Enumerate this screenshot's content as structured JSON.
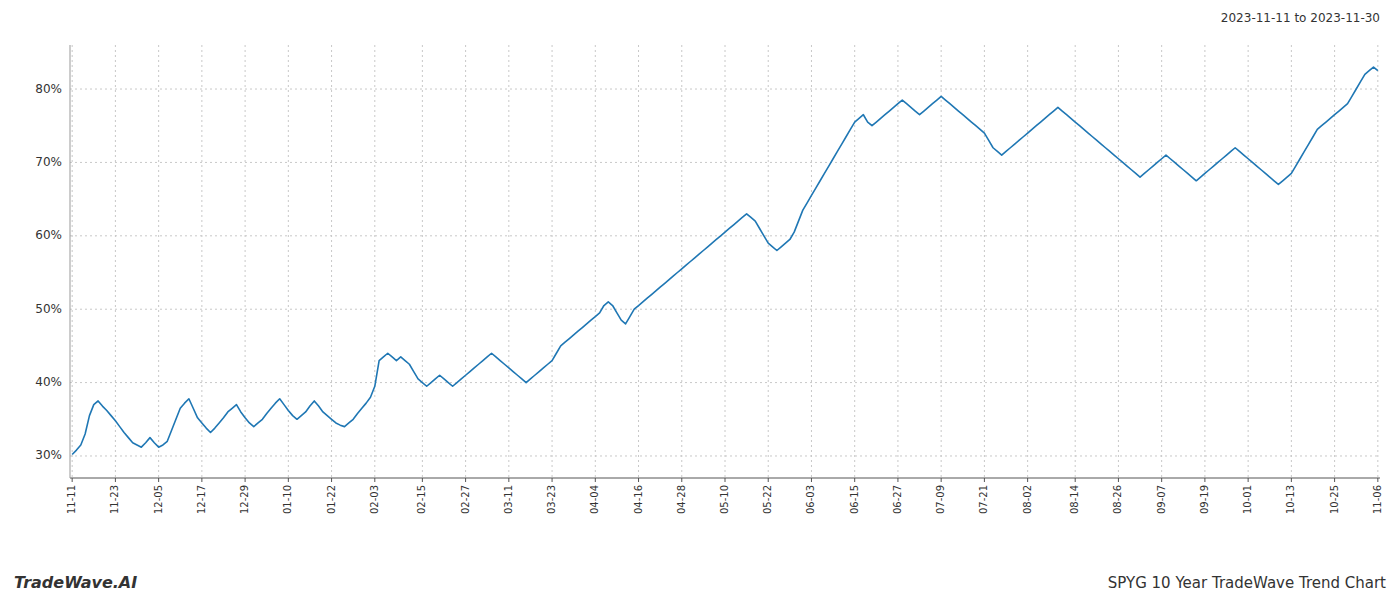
{
  "chart_data": {
    "type": "line",
    "title": "SPYG 10 Year TradeWave Trend Chart",
    "subtitle": "2023-11-11 to 2023-11-30",
    "annotations": [
      "TradeWave.AI"
    ],
    "color": "#1f77b4",
    "grid": true,
    "ylim": [
      27,
      86
    ],
    "yticks": [
      {
        "value": 30,
        "label": "30%"
      },
      {
        "value": 40,
        "label": "40%"
      },
      {
        "value": 50,
        "label": "50%"
      },
      {
        "value": 60,
        "label": "60%"
      },
      {
        "value": 70,
        "label": "70%"
      },
      {
        "value": 80,
        "label": "80%"
      }
    ],
    "categories": [
      "11-11",
      null,
      null,
      null,
      null,
      null,
      null,
      null,
      null,
      null,
      "11-23",
      null,
      null,
      null,
      null,
      null,
      null,
      null,
      null,
      null,
      "12-05",
      null,
      null,
      null,
      null,
      null,
      null,
      null,
      null,
      null,
      "12-17",
      null,
      null,
      null,
      null,
      null,
      null,
      null,
      null,
      null,
      "12-29",
      null,
      null,
      null,
      null,
      null,
      null,
      null,
      null,
      null,
      "01-10",
      null,
      null,
      null,
      null,
      null,
      null,
      null,
      null,
      null,
      "01-22",
      null,
      null,
      null,
      null,
      null,
      null,
      null,
      null,
      null,
      "02-03",
      null,
      null,
      null,
      null,
      null,
      null,
      null,
      null,
      null,
      null,
      "02-15",
      null,
      null,
      null,
      null,
      null,
      null,
      null,
      null,
      null,
      "02-27",
      null,
      null,
      null,
      null,
      null,
      null,
      null,
      null,
      null,
      "03-11",
      null,
      null,
      null,
      null,
      null,
      null,
      null,
      null,
      null,
      "03-23",
      null,
      null,
      null,
      null,
      null,
      null,
      null,
      null,
      null,
      "04-04",
      null,
      null,
      null,
      null,
      null,
      null,
      null,
      null,
      null,
      "04-16",
      null,
      null,
      null,
      null,
      null,
      null,
      null,
      null,
      null,
      "04-28",
      null,
      null,
      null,
      null,
      null,
      null,
      null,
      null,
      null,
      "05-10",
      null,
      null,
      null,
      null,
      null,
      null,
      null,
      null,
      null,
      "05-22",
      null,
      null,
      null,
      null,
      null,
      null,
      null,
      null,
      null,
      "06-03",
      null,
      null,
      null,
      null,
      null,
      null,
      null,
      null,
      null,
      "06-15",
      null,
      null,
      null,
      null,
      null,
      null,
      null,
      null,
      null,
      "06-27",
      null,
      null,
      null,
      null,
      null,
      null,
      null,
      null,
      null,
      "07-09",
      null,
      null,
      null,
      null,
      null,
      null,
      null,
      null,
      null,
      "07-21",
      null,
      null,
      null,
      null,
      null,
      null,
      null,
      null,
      null,
      "08-02",
      null,
      null,
      null,
      null,
      null,
      null,
      null,
      null,
      null,
      null,
      "08-14",
      null,
      null,
      null,
      null,
      null,
      null,
      null,
      null,
      null,
      "08-26",
      null,
      null,
      null,
      null,
      null,
      null,
      null,
      null,
      null,
      "09-07",
      null,
      null,
      null,
      null,
      null,
      null,
      null,
      null,
      null,
      "09-19",
      null,
      null,
      null,
      null,
      null,
      null,
      null,
      null,
      null,
      "10-01",
      null,
      null,
      null,
      null,
      null,
      null,
      null,
      null,
      null,
      "10-13",
      null,
      null,
      null,
      null,
      null,
      null,
      null,
      null,
      null,
      "10-25",
      null,
      null,
      null,
      null,
      null,
      null,
      null,
      null,
      null,
      "11-06"
    ],
    "values": [
      30.2,
      30.8,
      31.5,
      33.0,
      35.5,
      37.0,
      37.5,
      36.8,
      36.2,
      35.5,
      34.8,
      34.0,
      33.2,
      32.5,
      31.8,
      31.5,
      31.2,
      31.8,
      32.5,
      31.8,
      31.2,
      31.5,
      32.0,
      33.5,
      35.0,
      36.5,
      37.2,
      37.8,
      36.5,
      35.2,
      34.5,
      33.8,
      33.2,
      33.8,
      34.5,
      35.2,
      36.0,
      36.5,
      37.0,
      36.0,
      35.2,
      34.5,
      34.0,
      34.5,
      35.0,
      35.8,
      36.5,
      37.2,
      37.8,
      37.0,
      36.2,
      35.5,
      35.0,
      35.5,
      36.0,
      36.8,
      37.5,
      36.8,
      36.0,
      35.5,
      35.0,
      34.5,
      34.2,
      34.0,
      34.5,
      35.0,
      35.8,
      36.5,
      37.2,
      38.0,
      39.5,
      43.0,
      43.5,
      44.0,
      43.5,
      43.0,
      43.5,
      43.0,
      42.5,
      41.5,
      40.5,
      40.0,
      39.5,
      40.0,
      40.5,
      41.0,
      40.5,
      40.0,
      39.5,
      40.0,
      40.5,
      41.0,
      41.5,
      42.0,
      42.5,
      43.0,
      43.5,
      44.0,
      43.5,
      43.0,
      42.5,
      42.0,
      41.5,
      41.0,
      40.5,
      40.0,
      40.5,
      41.0,
      41.5,
      42.0,
      42.5,
      43.0,
      44.0,
      45.0,
      45.5,
      46.0,
      46.5,
      47.0,
      47.5,
      48.0,
      48.5,
      49.0,
      49.5,
      50.5,
      51.0,
      50.5,
      49.5,
      48.5,
      48.0,
      49.0,
      50.0,
      50.5,
      51.0,
      51.5,
      52.0,
      52.5,
      53.0,
      53.5,
      54.0,
      54.5,
      55.0,
      55.5,
      56.0,
      56.5,
      57.0,
      57.5,
      58.0,
      58.5,
      59.0,
      59.5,
      60.0,
      60.5,
      61.0,
      61.5,
      62.0,
      62.5,
      63.0,
      62.5,
      62.0,
      61.0,
      60.0,
      59.0,
      58.5,
      58.0,
      58.5,
      59.0,
      59.5,
      60.5,
      62.0,
      63.5,
      64.5,
      65.5,
      66.5,
      67.5,
      68.5,
      69.5,
      70.5,
      71.5,
      72.5,
      73.5,
      74.5,
      75.5,
      76.0,
      76.5,
      75.5,
      75.0,
      75.5,
      76.0,
      76.5,
      77.0,
      77.5,
      78.0,
      78.5,
      78.0,
      77.5,
      77.0,
      76.5,
      77.0,
      77.5,
      78.0,
      78.5,
      79.0,
      78.5,
      78.0,
      77.5,
      77.0,
      76.5,
      76.0,
      75.5,
      75.0,
      74.5,
      74.0,
      73.0,
      72.0,
      71.5,
      71.0,
      71.5,
      72.0,
      72.5,
      73.0,
      73.5,
      74.0,
      74.5,
      75.0,
      75.5,
      76.0,
      76.5,
      77.0,
      77.5,
      77.0,
      76.5,
      76.0,
      75.5,
      75.0,
      74.5,
      74.0,
      73.5,
      73.0,
      72.5,
      72.0,
      71.5,
      71.0,
      70.5,
      70.0,
      69.5,
      69.0,
      68.5,
      68.0,
      68.5,
      69.0,
      69.5,
      70.0,
      70.5,
      71.0,
      70.5,
      70.0,
      69.5,
      69.0,
      68.5,
      68.0,
      67.5,
      68.0,
      68.5,
      69.0,
      69.5,
      70.0,
      70.5,
      71.0,
      71.5,
      72.0,
      71.5,
      71.0,
      70.5,
      70.0,
      69.5,
      69.0,
      68.5,
      68.0,
      67.5,
      67.0,
      67.5,
      68.0,
      68.5,
      69.5,
      70.5,
      71.5,
      72.5,
      73.5,
      74.5,
      75.0,
      75.5,
      76.0,
      76.5,
      77.0,
      77.5,
      78.0,
      79.0,
      80.0,
      81.0,
      82.0,
      82.5,
      83.0,
      82.5
    ]
  }
}
